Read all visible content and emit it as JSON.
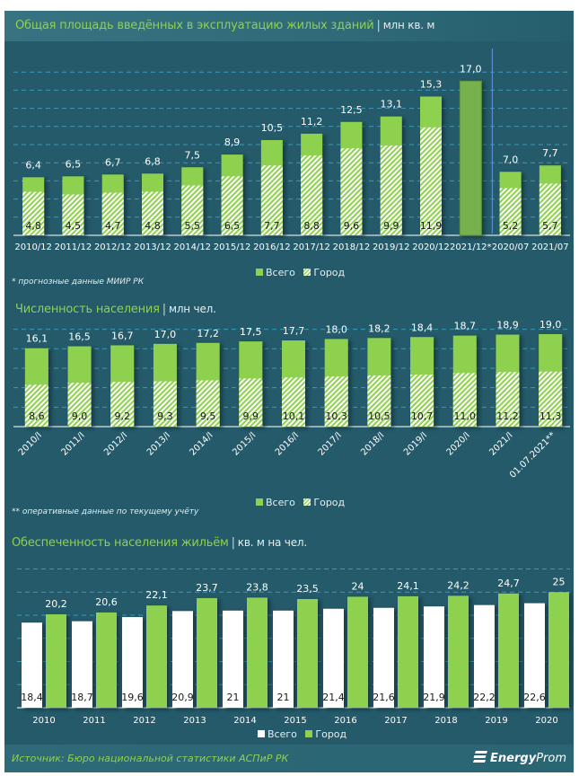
{
  "colors": {
    "background": "#245a69",
    "green": "#8ed14f",
    "forecast_green": "#77b14e",
    "white": "#ffffff",
    "grid": "#3a9bb8",
    "title_green": "#8ed14f"
  },
  "charts": {
    "area": {
      "title": "Общая площадь введённых в эксплуатацию жилых зданий",
      "unit": "млн кв. м",
      "note": "* прогнозные данные МИИР РК",
      "legend": [
        "Всего",
        "Город"
      ]
    },
    "population": {
      "title": "Численность населения",
      "unit": "млн чел.",
      "note": "** оперативные данные по текущему учёту",
      "legend": [
        "Всего",
        "Город"
      ]
    },
    "housing": {
      "title": "Обеспеченность населения жильём",
      "unit": "кв. м на чел.",
      "legend": [
        "Всего",
        "Город"
      ]
    }
  },
  "footer": {
    "source": "Источник: Бюро национальной  статистики АСПиР РК",
    "logo_bold": "Energy",
    "logo_thin": "Prom"
  },
  "chart_data": [
    {
      "type": "bar",
      "title": "Общая площадь введённых в эксплуатацию жилых зданий",
      "ylabel": "млн кв. м",
      "categories": [
        "2010/12",
        "2011/12",
        "2012/12",
        "2013/12",
        "2014/12",
        "2015/12",
        "2016/12",
        "2017/12",
        "2018/12",
        "2019/12",
        "2020/12",
        "2021/12*",
        "2020/07",
        "2021/07"
      ],
      "series": [
        {
          "name": "Всего",
          "values": [
            6.4,
            6.5,
            6.7,
            6.8,
            7.5,
            8.9,
            10.5,
            11.2,
            12.5,
            13.1,
            15.3,
            17.0,
            7.0,
            7.7
          ],
          "labels": [
            "6,4",
            "6,5",
            "6,7",
            "6,8",
            "7,5",
            "8,9",
            "10,5",
            "11,2",
            "12,5",
            "13,1",
            "15,3",
            "17,0",
            "7,0",
            "7,7"
          ]
        },
        {
          "name": "Город",
          "values": [
            4.8,
            4.5,
            4.7,
            4.8,
            5.5,
            6.5,
            7.7,
            8.8,
            9.6,
            9.9,
            11.9,
            null,
            5.2,
            5.7
          ],
          "labels": [
            "4,8",
            "4,5",
            "4,7",
            "4,8",
            "5,5",
            "6,5",
            "7,7",
            "8,8",
            "9,6",
            "9,9",
            "11,9",
            "",
            "5,2",
            "5,7"
          ]
        }
      ],
      "forecast_index": 11,
      "separator_after_index": 11,
      "ylim": [
        0,
        18
      ],
      "grid": true,
      "legend": "bottom"
    },
    {
      "type": "bar",
      "title": "Численность населения",
      "ylabel": "млн чел.",
      "categories": [
        "2010/I",
        "2011/I",
        "2012/I",
        "2013/I",
        "2014/I",
        "2015/I",
        "2016/I",
        "2017/I",
        "2018/I",
        "2019/I",
        "2020/I",
        "2021/I",
        "01.07.2021**"
      ],
      "series": [
        {
          "name": "Всего",
          "values": [
            16.1,
            16.5,
            16.7,
            17.0,
            17.2,
            17.5,
            17.7,
            18.0,
            18.2,
            18.4,
            18.7,
            18.9,
            19.0
          ],
          "labels": [
            "16,1",
            "16,5",
            "16,7",
            "17,0",
            "17,2",
            "17,5",
            "17,7",
            "18,0",
            "18,2",
            "18,4",
            "18,7",
            "18,9",
            "19,0"
          ]
        },
        {
          "name": "Город",
          "values": [
            8.6,
            9.0,
            9.2,
            9.3,
            9.5,
            9.9,
            10.1,
            10.3,
            10.5,
            10.7,
            11.0,
            11.2,
            11.3
          ],
          "labels": [
            "8,6",
            "9,0",
            "9,2",
            "9,3",
            "9,5",
            "9,9",
            "10,1",
            "10,3",
            "10,5",
            "10,7",
            "11,0",
            "11,2",
            "11,3"
          ]
        }
      ],
      "ylim": [
        0,
        20
      ],
      "grid": true,
      "legend": "bottom"
    },
    {
      "type": "bar",
      "title": "Обеспеченность населения жильём",
      "ylabel": "кв. м на чел.",
      "categories": [
        "2010",
        "2011",
        "2012",
        "2013",
        "2014",
        "2015",
        "2016",
        "2017",
        "2018",
        "2019",
        "2020"
      ],
      "series": [
        {
          "name": "Всего",
          "values": [
            18.4,
            18.7,
            19.6,
            20.9,
            21,
            21,
            21.4,
            21.6,
            21.9,
            22.2,
            22.6
          ],
          "labels": [
            "18,4",
            "18,7",
            "19,6",
            "20,9",
            "21",
            "21",
            "21,4",
            "21,6",
            "21,9",
            "22,2",
            "22,6"
          ]
        },
        {
          "name": "Город",
          "values": [
            20.2,
            20.6,
            22.1,
            23.7,
            23.8,
            23.5,
            24,
            24.1,
            24.2,
            24.7,
            25
          ],
          "labels": [
            "20,2",
            "20,6",
            "22,1",
            "23,7",
            "23,8",
            "23,5",
            "24",
            "24,1",
            "24,2",
            "24,7",
            "25"
          ]
        }
      ],
      "ylim": [
        0,
        30
      ],
      "grid": true,
      "legend": "bottom"
    }
  ]
}
